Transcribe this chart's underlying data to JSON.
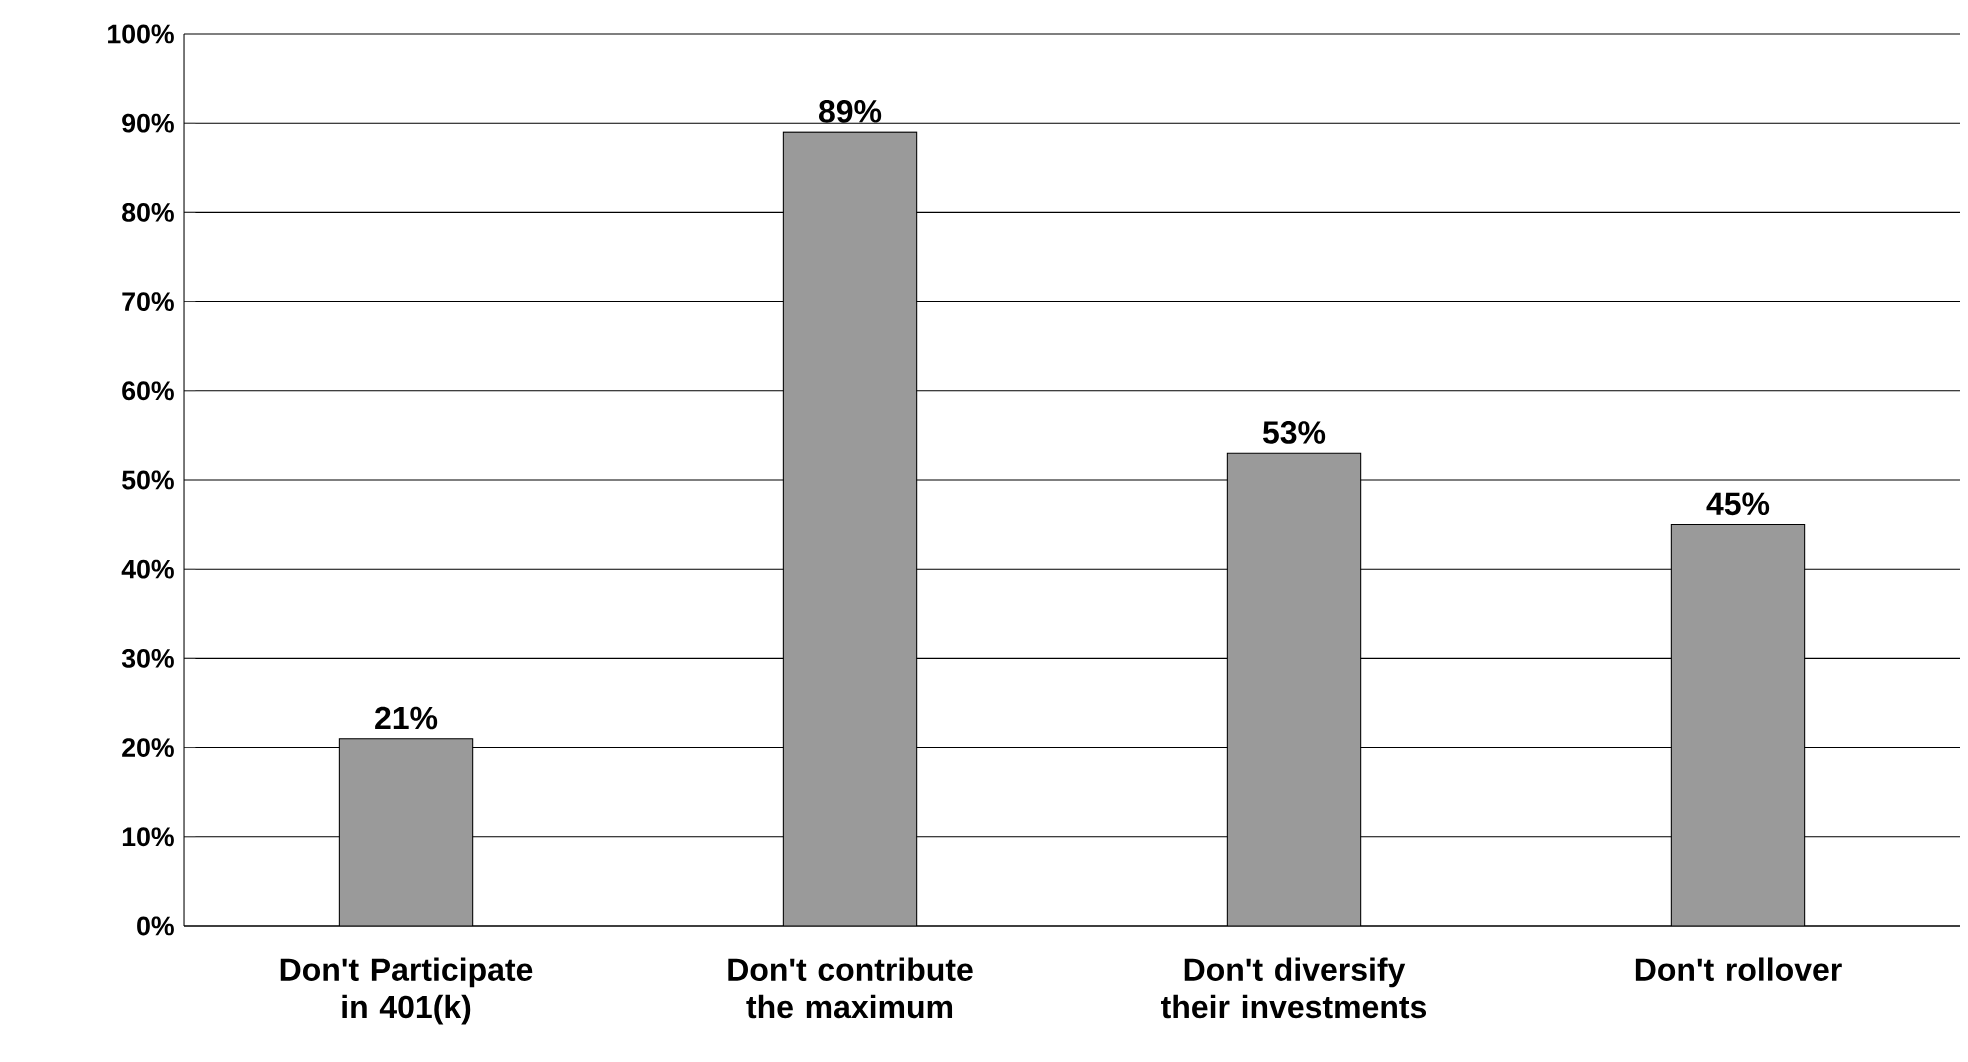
{
  "chart_data": {
    "type": "bar",
    "categories": [
      "Don't Participate in 401(k)",
      "Don't contribute the maximum",
      "Don't diversify their investments",
      "Don't rollover"
    ],
    "values": [
      21,
      89,
      53,
      45
    ],
    "value_labels": [
      "21%",
      "89%",
      "53%",
      "45%"
    ],
    "color": "#9a9a9a",
    "ylim": [
      0,
      100
    ],
    "yticks": [
      {
        "value": 0,
        "label": "0%"
      },
      {
        "value": 10,
        "label": "10%"
      },
      {
        "value": 20,
        "label": "20%"
      },
      {
        "value": 30,
        "label": "30%"
      },
      {
        "value": 40,
        "label": "40%"
      },
      {
        "value": 50,
        "label": "50%"
      },
      {
        "value": 60,
        "label": "60%"
      },
      {
        "value": 70,
        "label": "70%"
      },
      {
        "value": 80,
        "label": "80%"
      },
      {
        "value": 90,
        "label": "90%"
      },
      {
        "value": 100,
        "label": "100%"
      }
    ],
    "grid": "y"
  }
}
